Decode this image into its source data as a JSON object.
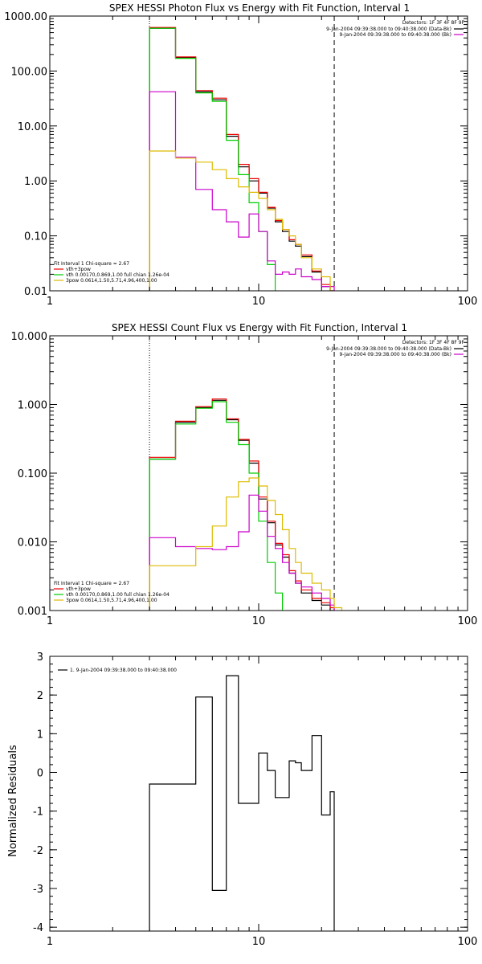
{
  "chart_data": [
    {
      "type": "line",
      "title": "SPEX HESSI Photon Flux vs Energy with Fit Function, Interval 1",
      "xlabel": "",
      "ylabel": "",
      "x_scale": "log",
      "y_scale": "log",
      "xlim": [
        1,
        100
      ],
      "ylim": [
        0.01,
        1000
      ],
      "x_ticks": [
        "1",
        "10",
        "100"
      ],
      "y_ticks": [
        "1000.00",
        "100.00",
        "10.00",
        "1.00",
        "0.10",
        "0.01"
      ],
      "vlines": [
        {
          "x": 3,
          "style": "dotted"
        },
        {
          "x": 23,
          "style": "dashed"
        }
      ],
      "legend_topright": {
        "detectors": "Detectors: 1F 3F 4F 8F 9F",
        "entries": [
          {
            "label": "9-Jan-2004 09:39:38.000 to 09:40:38.000 (Data-Bk)",
            "color": "#000000"
          },
          {
            "label": "9-Jan-2004 09:39:38.000 to 09:40:38.000 (Bk)",
            "color": "#cc00cc"
          }
        ]
      },
      "legend_bottomleft": {
        "header": "Fit Interval 1   Chi-square = 2.67",
        "entries": [
          {
            "label": "vth+3pow",
            "color": "#ee0000"
          },
          {
            "label": "vth 0.00170,0.869,1.00   full chian 1.26e-04",
            "color": "#00cc00"
          },
          {
            "label": "3pow 0.0614,1.50,5.71,4.96,400,1.00",
            "color": "#ddbb00"
          }
        ]
      },
      "series": [
        {
          "name": "Data-Bk",
          "color": "#000000",
          "edges": [
            3,
            4,
            5,
            6,
            7,
            8,
            9,
            10,
            11,
            12,
            13,
            14,
            15,
            16,
            18,
            20,
            22,
            23
          ],
          "values": [
            600,
            175,
            42,
            30,
            6.5,
            1.8,
            1.0,
            0.6,
            0.32,
            0.18,
            0.12,
            0.08,
            0.065,
            0.042,
            0.022,
            0.012,
            0.01
          ]
        },
        {
          "name": "vth+3pow",
          "color": "#ee0000",
          "edges": [
            3,
            4,
            5,
            6,
            7,
            8,
            9,
            10,
            11,
            12,
            13,
            14,
            15,
            16,
            18,
            20,
            22,
            23
          ],
          "values": [
            620,
            180,
            44,
            32,
            7.0,
            2.0,
            1.1,
            0.62,
            0.33,
            0.19,
            0.13,
            0.085,
            0.07,
            0.045,
            0.023,
            0.013,
            0.01
          ]
        },
        {
          "name": "vth",
          "color": "#00cc00",
          "edges": [
            3,
            4,
            5,
            6,
            7,
            8,
            9,
            10,
            11,
            12
          ],
          "values": [
            600,
            170,
            40,
            28,
            5.5,
            1.3,
            0.4,
            0.12,
            0.03,
            0.01
          ]
        },
        {
          "name": "Bk",
          "color": "#cc00cc",
          "edges": [
            3,
            4,
            5,
            6,
            7,
            8,
            9,
            10,
            11,
            12,
            13,
            14,
            15,
            16,
            18,
            20,
            22,
            23
          ],
          "values": [
            42,
            2.7,
            0.7,
            0.3,
            0.18,
            0.095,
            0.25,
            0.12,
            0.035,
            0.02,
            0.022,
            0.02,
            0.025,
            0.018,
            0.016,
            0.012,
            0.012
          ]
        },
        {
          "name": "3pow",
          "color": "#ddbb00",
          "edges": [
            3,
            4,
            5,
            6,
            7,
            8,
            9,
            10,
            11,
            12,
            13,
            14,
            15,
            16,
            18,
            20,
            22,
            23
          ],
          "values": [
            3.5,
            2.6,
            2.2,
            1.6,
            1.1,
            0.78,
            0.62,
            0.48,
            0.3,
            0.2,
            0.13,
            0.1,
            0.07,
            0.04,
            0.025,
            0.018,
            0.01
          ]
        }
      ]
    },
    {
      "type": "line",
      "title": "SPEX HESSI Count Flux vs Energy with Fit Function, Interval 1",
      "xlabel": "",
      "ylabel": "",
      "x_scale": "log",
      "y_scale": "log",
      "xlim": [
        1,
        100
      ],
      "ylim": [
        0.001,
        10
      ],
      "x_ticks": [
        "1",
        "10",
        "100"
      ],
      "y_ticks": [
        "10.000",
        "1.000",
        "0.100",
        "0.010",
        "0.001"
      ],
      "vlines": [
        {
          "x": 3,
          "style": "dotted"
        },
        {
          "x": 23,
          "style": "dashed"
        }
      ],
      "legend_topright": {
        "detectors": "Detectors: 1F 3F 4F 8F 9F",
        "entries": [
          {
            "label": "9-Jan-2004 09:39:38.000 to 09:40:38.000 (Data-Bk)",
            "color": "#000000"
          },
          {
            "label": "9-Jan-2004 09:39:38.000 to 09:40:38.000 (Bk)",
            "color": "#cc00cc"
          }
        ]
      },
      "legend_bottomleft": {
        "header": "Fit Interval 1   Chi-square = 2.67",
        "entries": [
          {
            "label": "vth+3pow",
            "color": "#ee0000"
          },
          {
            "label": "vth 0.00170,0.869,1.00   full chian 1.26e-04",
            "color": "#00cc00"
          },
          {
            "label": "3pow 0.0614,1.50,5.71,4.96,400,1.00",
            "color": "#ddbb00"
          }
        ]
      },
      "series": [
        {
          "name": "Data-Bk",
          "color": "#000000",
          "edges": [
            3,
            4,
            5,
            6,
            7,
            8,
            9,
            10,
            11,
            12,
            13,
            14,
            15,
            16,
            18,
            20,
            22,
            23
          ],
          "values": [
            0.16,
            0.55,
            0.9,
            1.15,
            0.6,
            0.3,
            0.14,
            0.042,
            0.019,
            0.009,
            0.006,
            0.0035,
            0.0025,
            0.0018,
            0.0014,
            0.0012,
            0.001
          ]
        },
        {
          "name": "vth+3pow",
          "color": "#ee0000",
          "edges": [
            3,
            4,
            5,
            6,
            7,
            8,
            9,
            10,
            11,
            12,
            13,
            14,
            15,
            16,
            18,
            20,
            22,
            23
          ],
          "values": [
            0.17,
            0.57,
            0.93,
            1.2,
            0.62,
            0.31,
            0.15,
            0.045,
            0.02,
            0.0095,
            0.0065,
            0.0038,
            0.0027,
            0.002,
            0.0015,
            0.0013,
            0.0011
          ]
        },
        {
          "name": "vth",
          "color": "#00cc00",
          "edges": [
            3,
            4,
            5,
            6,
            7,
            8,
            9,
            10,
            11,
            12,
            13
          ],
          "values": [
            0.16,
            0.52,
            0.88,
            1.1,
            0.55,
            0.26,
            0.1,
            0.02,
            0.005,
            0.0018,
            0.001
          ]
        },
        {
          "name": "Bk",
          "color": "#cc00cc",
          "edges": [
            3,
            4,
            5,
            6,
            7,
            8,
            9,
            10,
            11,
            12,
            13,
            14,
            15,
            16,
            18,
            20,
            22,
            23
          ],
          "values": [
            0.0115,
            0.0085,
            0.008,
            0.0077,
            0.0085,
            0.014,
            0.048,
            0.028,
            0.012,
            0.008,
            0.005,
            0.0035,
            0.0025,
            0.0022,
            0.0018,
            0.0015,
            0.0012
          ]
        },
        {
          "name": "3pow",
          "color": "#ddbb00",
          "edges": [
            3,
            4,
            5,
            6,
            7,
            8,
            9,
            10,
            11,
            12,
            13,
            14,
            15,
            16,
            18,
            20,
            22,
            23,
            25
          ],
          "values": [
            0.0045,
            0.0045,
            0.0085,
            0.017,
            0.045,
            0.075,
            0.085,
            0.065,
            0.04,
            0.025,
            0.015,
            0.008,
            0.005,
            0.0035,
            0.0025,
            0.002,
            0.0015,
            0.0011
          ]
        }
      ]
    },
    {
      "type": "line",
      "title": "",
      "xlabel": "",
      "ylabel": "Normalized Residuals",
      "x_scale": "log",
      "y_scale": "linear",
      "xlim": [
        1,
        100
      ],
      "ylim": [
        -4.1,
        3
      ],
      "x_ticks": [
        "1",
        "10",
        "100"
      ],
      "y_ticks": [
        "3",
        "2",
        "1",
        "0",
        "-1",
        "-2",
        "-3",
        "-4"
      ],
      "legend": "1. 9-Jan-2004 09:39:38.000 to 09:40:38.000",
      "series": [
        {
          "name": "1. 9-Jan-2004 09:39:38.000 to 09:40:38.000",
          "color": "#000000",
          "edges": [
            3,
            4,
            5,
            6,
            7,
            8,
            9,
            10,
            11,
            12,
            13,
            14,
            15,
            16,
            18,
            20,
            22,
            23
          ],
          "values": [
            -0.3,
            -0.3,
            1.95,
            -3.05,
            2.5,
            -0.8,
            -0.8,
            0.5,
            0.05,
            -0.65,
            -0.65,
            0.3,
            0.25,
            0.05,
            0.95,
            -1.1,
            -0.5
          ]
        }
      ]
    }
  ]
}
